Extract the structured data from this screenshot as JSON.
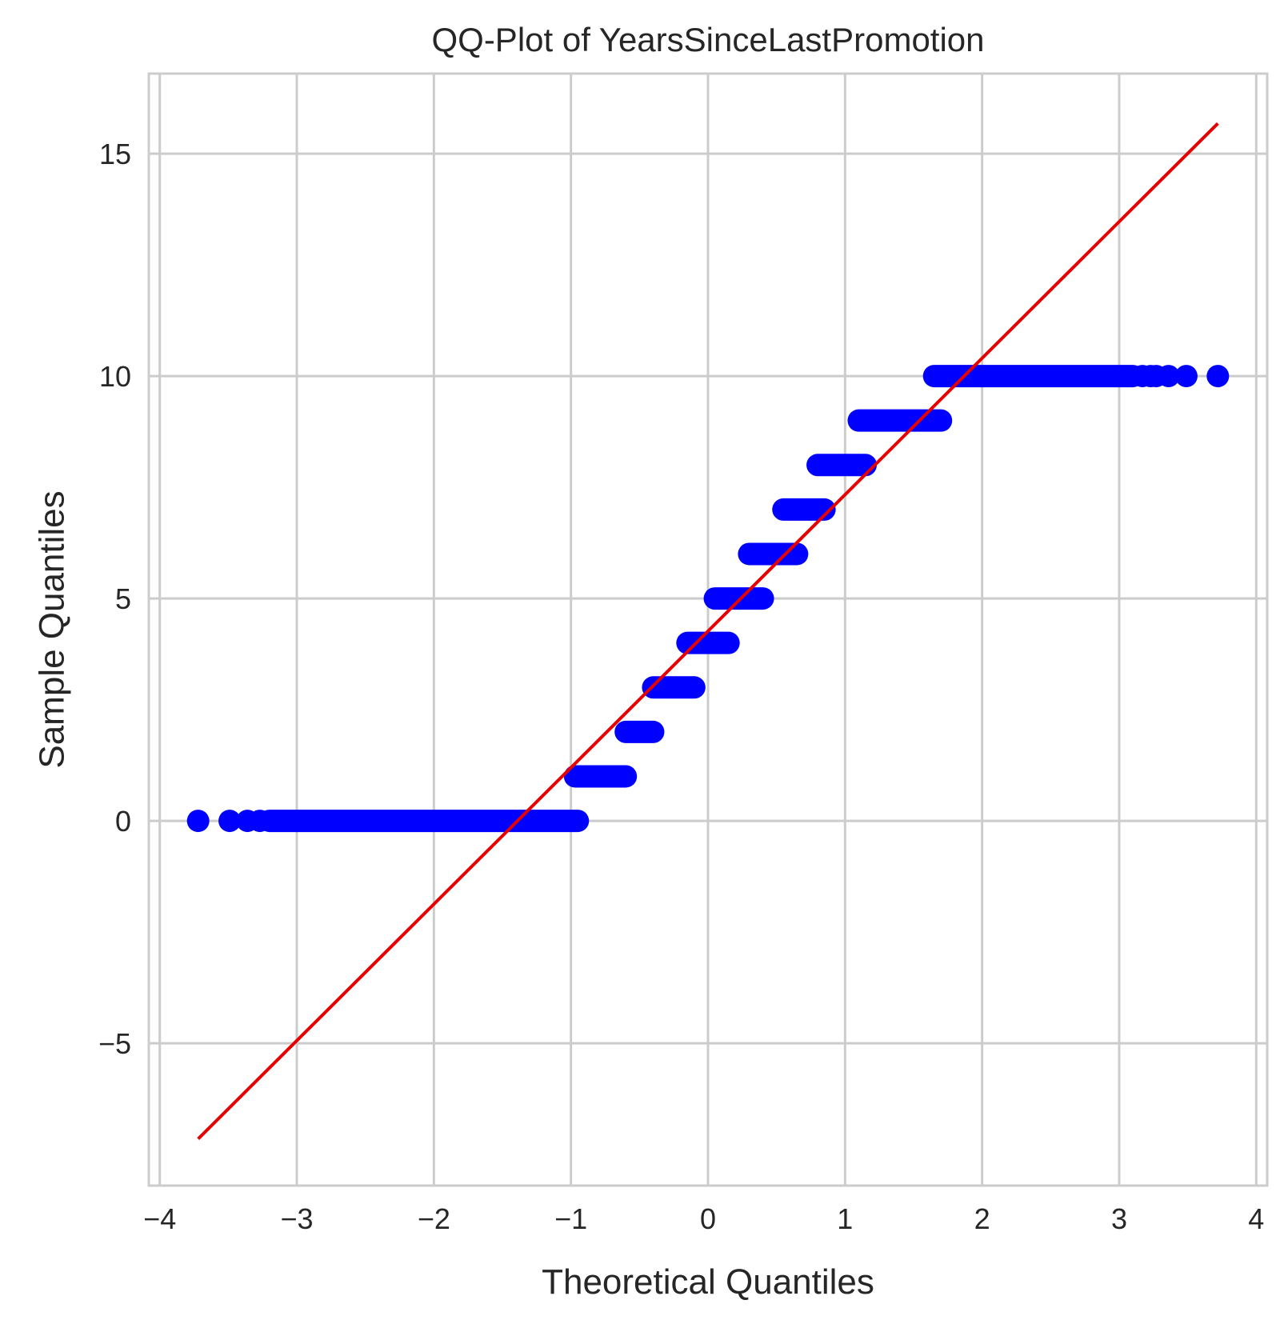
{
  "chart_data": {
    "type": "scatter",
    "title": "QQ-Plot of YearsSinceLastPromotion",
    "xlabel": "Theoretical Quantiles",
    "ylabel": "Sample Quantiles",
    "xlim": [
      -4.08,
      4.08
    ],
    "ylim": [
      -8.2,
      16.8
    ],
    "xticks": [
      -4,
      -3,
      -2,
      -1,
      0,
      1,
      2,
      3,
      4
    ],
    "xtick_labels": [
      "−4",
      "−3",
      "−2",
      "−1",
      "0",
      "1",
      "2",
      "3",
      "4"
    ],
    "yticks": [
      -5,
      0,
      5,
      10,
      15
    ],
    "ytick_labels": [
      "−5",
      "0",
      "5",
      "10",
      "15"
    ],
    "grid": true,
    "colors": {
      "points": "#0000ff",
      "line": "#e60000",
      "grid": "#cccccc"
    },
    "series": [
      {
        "kind": "points",
        "segments": [
          {
            "y": 0,
            "x_start": -3.2,
            "x_end": -0.95
          },
          {
            "y": 1,
            "x_start": -0.97,
            "x_end": -0.6
          },
          {
            "y": 2,
            "x_start": -0.6,
            "x_end": -0.4
          },
          {
            "y": 3,
            "x_start": -0.4,
            "x_end": -0.1
          },
          {
            "y": 4,
            "x_start": -0.15,
            "x_end": 0.15
          },
          {
            "y": 5,
            "x_start": 0.05,
            "x_end": 0.4
          },
          {
            "y": 6,
            "x_start": 0.3,
            "x_end": 0.65
          },
          {
            "y": 7,
            "x_start": 0.55,
            "x_end": 0.85
          },
          {
            "y": 8,
            "x_start": 0.8,
            "x_end": 1.15
          },
          {
            "y": 9,
            "x_start": 1.1,
            "x_end": 1.7
          },
          {
            "y": 10,
            "x_start": 1.65,
            "x_end": 3.1
          }
        ],
        "isolated": [
          {
            "x": -3.72,
            "y": 0
          },
          {
            "x": -3.49,
            "y": 0
          },
          {
            "x": -3.36,
            "y": 0
          },
          {
            "x": -3.27,
            "y": 0
          },
          {
            "x": 3.17,
            "y": 10
          },
          {
            "x": 3.23,
            "y": 10
          },
          {
            "x": 3.27,
            "y": 10
          },
          {
            "x": 3.36,
            "y": 10
          },
          {
            "x": 3.49,
            "y": 10
          },
          {
            "x": 3.72,
            "y": 10
          }
        ]
      },
      {
        "kind": "line",
        "x": [
          -3.72,
          3.72
        ],
        "y": [
          -7.15,
          15.68
        ]
      }
    ]
  }
}
